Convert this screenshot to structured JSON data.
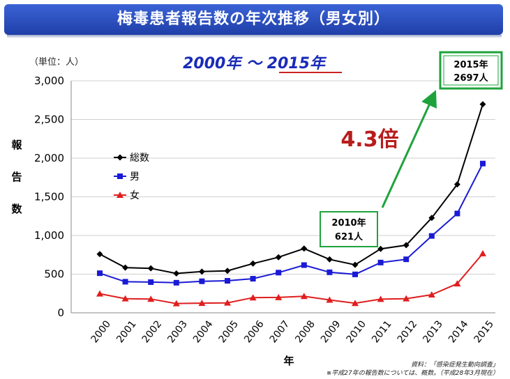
{
  "title": "梅毒患者報告数の年次推移（男女別）",
  "period": "2000年 〜 2015年",
  "colors": {
    "banner": "#2a4fc0",
    "total": "#000000",
    "male": "#1a1ad6",
    "female": "#e01e1e",
    "growth": "#b81c1c",
    "arrow": "#1ea33c"
  },
  "chart_data": {
    "type": "line",
    "unit_label": "（単位：人）",
    "ylabel": "報告数",
    "xlabel": "年",
    "ylim": [
      0,
      3000
    ],
    "yticks": [
      "0",
      "500",
      "1,000",
      "1,500",
      "2,000",
      "2,500",
      "3,000"
    ],
    "categories": [
      "2000",
      "2001",
      "2002",
      "2003",
      "2004",
      "2005",
      "2006",
      "2007",
      "2008",
      "2009",
      "2010",
      "2011",
      "2012",
      "2013",
      "2014",
      "2015"
    ],
    "series": [
      {
        "name": "総数",
        "marker": "diamond",
        "values": [
          759,
          585,
          575,
          509,
          533,
          543,
          637,
          719,
          831,
          691,
          621,
          827,
          875,
          1228,
          1661,
          2697
        ]
      },
      {
        "name": "男",
        "marker": "square",
        "values": [
          512,
          402,
          397,
          389,
          408,
          414,
          441,
          520,
          617,
          524,
          497,
          650,
          692,
          994,
          1284,
          1930
        ]
      },
      {
        "name": "女",
        "marker": "triangle",
        "values": [
          247,
          183,
          178,
          120,
          125,
          129,
          196,
          199,
          214,
          167,
          124,
          177,
          183,
          234,
          377,
          767
        ]
      }
    ],
    "callout_2010": {
      "year": "2010年",
      "value": "621人"
    },
    "callout_2015": {
      "year": "2015年",
      "value": "2697人"
    },
    "growth_label": "4.3倍"
  },
  "source_note": "資料：「感染症発生動向調査」",
  "footnote": "※平成27年の報告数については、概数。（平成28年3月現在）"
}
